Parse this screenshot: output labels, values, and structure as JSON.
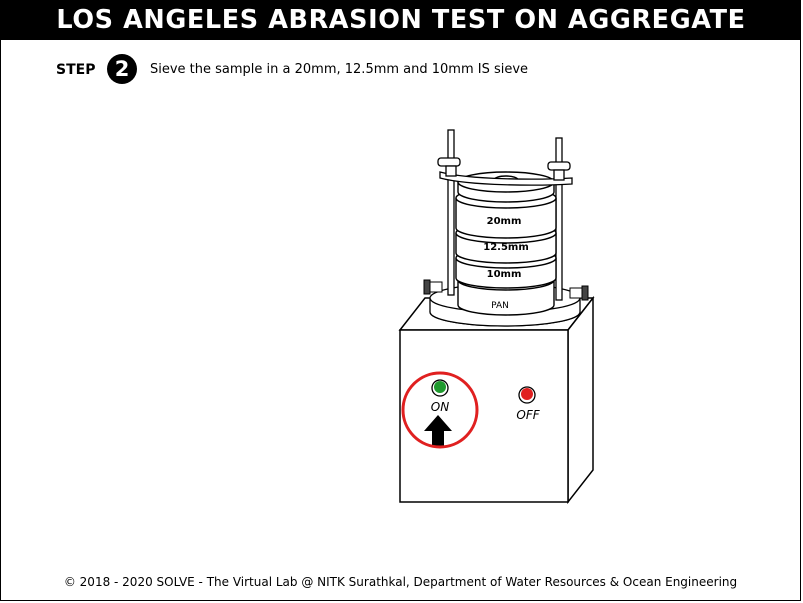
{
  "header": {
    "title": "LOS ANGELES ABRASION TEST ON AGGREGATE"
  },
  "step": {
    "label": "STEP",
    "number": "2",
    "instruction": "Sieve the sample in a 20mm, 12.5mm and 10mm IS sieve"
  },
  "apparatus": {
    "sieves": [
      "20mm",
      "12.5mm",
      "10mm"
    ],
    "pan_label": "PAN",
    "on_button": {
      "label": "ON",
      "color": "#1f9a2e"
    },
    "off_button": {
      "label": "OFF",
      "color": "#e02020"
    },
    "highlight_color": "#e02020"
  },
  "footer": {
    "text": "© 2018 - 2020 SOLVE - The Virtual Lab @ NITK Surathkal, Department of Water Resources & Ocean Engineering"
  }
}
